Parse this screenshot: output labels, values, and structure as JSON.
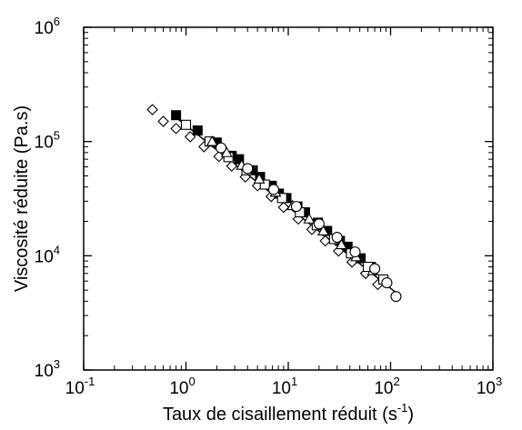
{
  "chart_data": {
    "type": "scatter",
    "title": "",
    "xlabel": "Taux de cisaillement réduit (s⁻¹)",
    "ylabel": "Viscosité réduite (Pa.s)",
    "xscale": "log",
    "yscale": "log",
    "xlim": [
      0.1,
      1000
    ],
    "ylim": [
      1000,
      1000000
    ],
    "grid": false,
    "legend": "none",
    "x_ticks": [
      {
        "value": 0.1,
        "base": "10",
        "exp": "-1"
      },
      {
        "value": 1,
        "base": "10",
        "exp": "0"
      },
      {
        "value": 10,
        "base": "10",
        "exp": "1"
      },
      {
        "value": 100,
        "base": "10",
        "exp": "2"
      },
      {
        "value": 1000,
        "base": "10",
        "exp": "3"
      }
    ],
    "y_ticks": [
      {
        "value": 1000,
        "base": "10",
        "exp": "3"
      },
      {
        "value": 10000,
        "base": "10",
        "exp": "4"
      },
      {
        "value": 100000,
        "base": "10",
        "exp": "5"
      },
      {
        "value": 1000000,
        "base": "10",
        "exp": "6"
      }
    ],
    "fit_line": {
      "x": [
        0.75,
        115
      ],
      "y": [
        170000,
        4700
      ]
    },
    "series": [
      {
        "marker": "diamond-open",
        "x": [
          0.47,
          0.6,
          0.8,
          1.1,
          1.5,
          2.1,
          2.8,
          3.8,
          5.0,
          6.8,
          9.0,
          12.5,
          17,
          23,
          31,
          42,
          57,
          75
        ],
        "y": [
          190000,
          150000,
          130000,
          110000,
          90000,
          74000,
          61000,
          49000,
          41000,
          33000,
          26500,
          21000,
          17000,
          13500,
          11000,
          8800,
          7000,
          5600
        ]
      },
      {
        "marker": "square-filled",
        "x": [
          0.8,
          1.3,
          2.0,
          2.8,
          3.3,
          4.5,
          5.3,
          6.9,
          8.1,
          9.6,
          12.3,
          14.6,
          19.5,
          24,
          32,
          38,
          51,
          64
        ],
        "y": [
          170000,
          125000,
          98000,
          75000,
          70000,
          56000,
          49000,
          41000,
          35000,
          32000,
          27000,
          24000,
          19500,
          16500,
          13500,
          12000,
          9500,
          8000
        ]
      },
      {
        "marker": "square-open",
        "x": [
          1.0,
          1.7,
          2.6,
          3.9,
          5.9,
          8.7,
          13,
          19,
          28,
          41,
          60,
          85
        ],
        "y": [
          140000,
          100000,
          73000,
          56000,
          42000,
          32000,
          24000,
          18500,
          14000,
          10500,
          8000,
          6200
        ]
      },
      {
        "marker": "triangle-open",
        "x": [
          1.8,
          2.5,
          3.5,
          5.2,
          7.5,
          11,
          16,
          22,
          33,
          46,
          67
        ],
        "y": [
          100000,
          80000,
          62000,
          47000,
          36000,
          27500,
          21000,
          16500,
          12500,
          9800,
          7400
        ]
      },
      {
        "marker": "circle-open",
        "x": [
          2.2,
          4.0,
          7.2,
          12,
          20,
          30,
          45,
          70,
          92,
          113
        ],
        "y": [
          88000,
          58000,
          38000,
          27000,
          19000,
          14500,
          10800,
          7700,
          5800,
          4400
        ]
      }
    ]
  }
}
